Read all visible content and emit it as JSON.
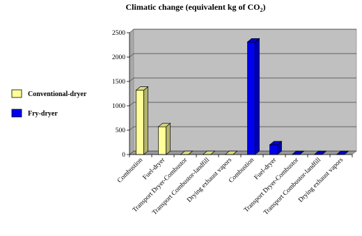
{
  "chart_data": {
    "type": "bar",
    "title_main": "Climatic change (equivalent kg of CO",
    "title_sub": "2",
    "title_end": ")",
    "categories": [
      "Combustion",
      "Fuel-dryer",
      "Transport Dryer-Combustor",
      "Transport Combustor-landfill",
      "Drying exhaust vapors",
      "Combustion",
      "Fuel-dryer",
      "Transport Dryer-Combustor",
      "Transport Combustor-landfill",
      "Drying exhaust vapors"
    ],
    "series": [
      {
        "name": "Conventional-dryer",
        "color": "#ffff99",
        "values": [
          1320,
          570,
          0,
          0,
          0,
          null,
          null,
          null,
          null,
          null
        ]
      },
      {
        "name": "Fry-dryer",
        "color": "#0000ee",
        "values": [
          null,
          null,
          null,
          null,
          null,
          2310,
          200,
          0,
          0,
          0
        ]
      }
    ],
    "ylim": [
      0,
      2500
    ],
    "yticks": [
      0,
      500,
      1000,
      1500,
      2000,
      2500
    ],
    "grid": true,
    "legend_position": "left"
  }
}
